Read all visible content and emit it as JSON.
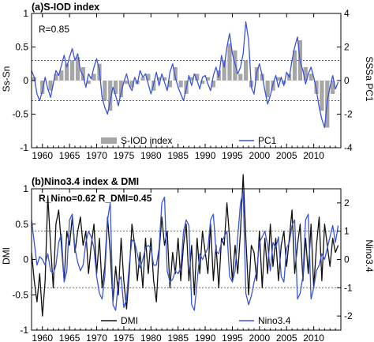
{
  "chart_data": [
    {
      "panel": "a",
      "title": "(a)S-IOD index",
      "type": "bar+line",
      "annotation": "R=0.85",
      "xlim": [
        1958,
        2015
      ],
      "x_ticks": [
        1960,
        1965,
        1970,
        1975,
        1980,
        1985,
        1990,
        1995,
        2000,
        2005,
        2010
      ],
      "x_ticks_on_bottom": true,
      "left_axis": {
        "label": "Ss-Sn",
        "lim": [
          -1,
          1
        ],
        "ticks": [
          -1,
          -0.5,
          0,
          0.5,
          1
        ],
        "tick_labels": [
          "-1",
          "-0.5",
          "0",
          "0.5",
          "1"
        ]
      },
      "right_axis": {
        "label": "SSSa PC1",
        "lim": [
          -4,
          4
        ],
        "ticks": [
          -4,
          -2,
          0,
          2,
          4
        ],
        "tick_labels": [
          "-4",
          "-2",
          "0",
          "2",
          "4"
        ]
      },
      "reference_lines": [
        0.3,
        -0.3
      ],
      "legend": [
        {
          "name": "S-IOD index",
          "style": "gray-bar"
        },
        {
          "name": "PC1",
          "style": "blue-line"
        }
      ],
      "legend_position": "bottom",
      "colors": {
        "bars": "#a6a6a6",
        "line": "#3a55d8",
        "ref": "#555555"
      },
      "series": [
        {
          "name": "S-IOD index",
          "kind": "bar",
          "axis": "left",
          "x": [
            1958.5,
            1960,
            1961.5,
            1962.5,
            1963.5,
            1964.5,
            1965.5,
            1966.5,
            1967.5,
            1968.5,
            1969.5,
            1970.5,
            1971.5,
            1972.5,
            1973.5,
            1974.5,
            1975.5,
            1976.5,
            1977.5,
            1978.5,
            1979.5,
            1980.5,
            1981.5,
            1982.5,
            1983.5,
            1984.5,
            1985.5,
            1986.5,
            1987.5,
            1988.5,
            1989.5,
            1990.5,
            1991.5,
            1992.5,
            1993.5,
            1994.5,
            1995.5,
            1996.5,
            1997.5,
            1998.5,
            1999.5,
            2000.5,
            2001.5,
            2002.5,
            2003.5,
            2004.5,
            2005.5,
            2006.5,
            2007.5,
            2008.5,
            2009.5,
            2010.5,
            2011.5,
            2012.5,
            2013.5
          ],
          "values": [
            0.05,
            -0.2,
            -0.15,
            0.1,
            0.15,
            0.25,
            0.3,
            0.35,
            0.2,
            -0.05,
            0.1,
            0.25,
            -0.3,
            -0.45,
            -0.2,
            -0.25,
            -0.05,
            -0.1,
            -0.05,
            0.05,
            0.1,
            -0.15,
            0.05,
            0.05,
            -0.1,
            0.2,
            -0.1,
            -0.2,
            0.05,
            0.1,
            -0.05,
            0.05,
            -0.1,
            0.15,
            0.3,
            0.55,
            0.45,
            0.1,
            0.3,
            -0.1,
            0.2,
            0.1,
            -0.25,
            -0.15,
            0.05,
            -0.05,
            0.1,
            0.45,
            0.6,
            0.2,
            0.1,
            -0.2,
            -0.45,
            -0.7,
            -0.2
          ]
        },
        {
          "name": "PC1",
          "kind": "line",
          "axis": "right",
          "x": [
            1958,
            1958.5,
            1959,
            1959.5,
            1960,
            1960.5,
            1961,
            1961.5,
            1962,
            1962.5,
            1963,
            1963.5,
            1964,
            1964.5,
            1965,
            1965.5,
            1966,
            1966.5,
            1967,
            1967.5,
            1968,
            1968.5,
            1969,
            1969.5,
            1970,
            1970.5,
            1971,
            1971.5,
            1972,
            1972.5,
            1973,
            1973.5,
            1974,
            1974.5,
            1975,
            1975.5,
            1976,
            1976.5,
            1977,
            1977.5,
            1978,
            1978.5,
            1979,
            1979.5,
            1980,
            1980.5,
            1981,
            1981.5,
            1982,
            1982.5,
            1983,
            1983.5,
            1984,
            1984.5,
            1985,
            1985.5,
            1986,
            1986.5,
            1987,
            1987.5,
            1988,
            1988.5,
            1989,
            1989.5,
            1990,
            1990.5,
            1991,
            1991.5,
            1992,
            1992.5,
            1993,
            1993.5,
            1994,
            1994.5,
            1995,
            1995.5,
            1996,
            1996.5,
            1997,
            1997.5,
            1998,
            1998.5,
            1999,
            1999.5,
            2000,
            2000.5,
            2001,
            2001.5,
            2002,
            2002.5,
            2003,
            2003.5,
            2004,
            2004.5,
            2005,
            2005.5,
            2006,
            2006.5,
            2007,
            2007.5,
            2008,
            2008.5,
            2009,
            2009.5,
            2010,
            2010.5,
            2011,
            2011.5,
            2012,
            2012.5,
            2013,
            2013.5,
            2014,
            2014.5
          ],
          "values": [
            0.6,
            0.2,
            -0.8,
            -1.2,
            -0.6,
            0.2,
            -0.5,
            -1.0,
            -0.2,
            0.6,
            0.3,
            0.9,
            1.5,
            0.8,
            1.4,
            1.9,
            1.2,
            1.6,
            0.6,
            0.3,
            -0.4,
            0.4,
            0.1,
            0.8,
            1.3,
            0.6,
            -1.0,
            -1.6,
            -2.0,
            -1.2,
            -0.4,
            -0.9,
            -1.5,
            -0.7,
            -0.1,
            0.4,
            -0.3,
            -0.6,
            0.2,
            -0.2,
            0.6,
            0.2,
            0.4,
            -0.2,
            -0.8,
            -0.2,
            0.5,
            -0.3,
            0.4,
            -0.1,
            -0.6,
            0.5,
            1.0,
            0.2,
            -0.4,
            -0.8,
            -1.2,
            -0.5,
            0.3,
            -0.3,
            0.4,
            0.0,
            -0.5,
            0.2,
            0.3,
            -0.2,
            -0.6,
            0.3,
            0.8,
            0.2,
            1.5,
            0.8,
            2.0,
            2.8,
            1.6,
            1.0,
            0.4,
            0.8,
            1.6,
            3.5,
            2.4,
            -0.4,
            -0.8,
            0.5,
            1.0,
            0.3,
            -0.6,
            -1.4,
            -0.9,
            -0.2,
            0.3,
            -0.4,
            0.2,
            -0.3,
            0.5,
            0.2,
            1.2,
            2.0,
            2.6,
            1.1,
            0.6,
            -0.2,
            0.4,
            0.8,
            0.2,
            -0.6,
            -1.6,
            -2.3,
            -2.8,
            -1.2,
            -0.4,
            0.3,
            -0.5,
            -0.1
          ]
        }
      ]
    },
    {
      "panel": "b",
      "title": "(b)Nino3.4 index & DMI",
      "type": "line",
      "annotation": "R_Nino=0.62  R_DMI=0.45",
      "xlim": [
        1958,
        2015
      ],
      "x_ticks": [
        1960,
        1965,
        1970,
        1975,
        1980,
        1985,
        1990,
        1995,
        2000,
        2005,
        2010
      ],
      "left_axis": {
        "label": "DMI",
        "lim": [
          -1,
          1
        ],
        "ticks": [
          -1,
          -0.5,
          0,
          0.5,
          1
        ],
        "tick_labels": [
          "-1",
          "-0.5",
          "0",
          "0.5",
          "1"
        ]
      },
      "right_axis": {
        "label": "Nino3.4",
        "lim": [
          -2.5,
          2.5
        ],
        "ticks": [
          -2,
          -1,
          0,
          1,
          2
        ],
        "tick_labels": [
          "-2",
          "-1",
          "0",
          "1",
          "2"
        ]
      },
      "reference_lines": [
        0.4,
        -0.4
      ],
      "legend": [
        {
          "name": "DMI",
          "style": "black-line"
        },
        {
          "name": "Nino3.4",
          "style": "blue-line"
        }
      ],
      "legend_position": "bottom",
      "colors": {
        "dmi": "#111111",
        "nino": "#3a55d8",
        "ref": "#555555"
      },
      "series": [
        {
          "name": "DMI",
          "kind": "line",
          "axis": "left",
          "x": [
            1958,
            1958.5,
            1959,
            1959.5,
            1960,
            1960.5,
            1961,
            1961.5,
            1962,
            1962.5,
            1963,
            1963.5,
            1964,
            1964.5,
            1965,
            1965.5,
            1966,
            1966.5,
            1967,
            1967.5,
            1968,
            1968.5,
            1969,
            1969.5,
            1970,
            1970.5,
            1971,
            1971.5,
            1972,
            1972.5,
            1973,
            1973.5,
            1974,
            1974.5,
            1975,
            1975.5,
            1976,
            1976.5,
            1977,
            1977.5,
            1978,
            1978.5,
            1979,
            1979.5,
            1980,
            1980.5,
            1981,
            1981.5,
            1982,
            1982.5,
            1983,
            1983.5,
            1984,
            1984.5,
            1985,
            1985.5,
            1986,
            1986.5,
            1987,
            1987.5,
            1988,
            1988.5,
            1989,
            1989.5,
            1990,
            1990.5,
            1991,
            1991.5,
            1992,
            1992.5,
            1993,
            1993.5,
            1994,
            1994.5,
            1995,
            1995.5,
            1996,
            1996.5,
            1997,
            1997.5,
            1998,
            1998.5,
            1999,
            1999.5,
            2000,
            2000.5,
            2001,
            2001.5,
            2002,
            2002.5,
            2003,
            2003.5,
            2004,
            2004.5,
            2005,
            2005.5,
            2006,
            2006.5,
            2007,
            2007.5,
            2008,
            2008.5,
            2009,
            2009.5,
            2010,
            2010.5,
            2011,
            2011.5,
            2012,
            2012.5,
            2013,
            2013.5,
            2014,
            2014.5
          ],
          "values": [
            0.1,
            -0.3,
            -0.6,
            -0.2,
            -0.8,
            -0.3,
            0.9,
            0.2,
            -0.4,
            0.5,
            0.7,
            0.2,
            -0.3,
            0.4,
            0.2,
            0.6,
            0.1,
            0.4,
            0.6,
            0.2,
            0.4,
            -0.2,
            0.2,
            0.5,
            -0.2,
            0.3,
            -0.4,
            -0.1,
            0.6,
            0.1,
            -0.6,
            -0.1,
            -0.5,
            0.3,
            -0.3,
            -0.7,
            -0.2,
            0.5,
            0.2,
            -0.3,
            0.1,
            -0.4,
            0.3,
            -0.2,
            0.3,
            -0.3,
            -0.6,
            0.1,
            0.6,
            0.2,
            0.4,
            -0.4,
            0.1,
            -0.2,
            0.3,
            -0.3,
            0.2,
            0.5,
            -0.3,
            0.2,
            -0.5,
            0.3,
            -0.2,
            0.4,
            0.1,
            -0.2,
            0.5,
            -0.3,
            0.2,
            -0.4,
            0.3,
            0.2,
            0.8,
            0.3,
            -0.3,
            0.2,
            -0.2,
            0.4,
            1.2,
            0.3,
            -0.5,
            0.2,
            0.1,
            -0.3,
            0.4,
            -0.4,
            0.3,
            -0.2,
            0.5,
            -0.1,
            0.3,
            -0.3,
            0.2,
            0.4,
            -0.1,
            0.3,
            0.7,
            -0.2,
            0.2,
            0.5,
            -0.3,
            0.3,
            -0.2,
            0.5,
            -0.4,
            0.2,
            0.6,
            -0.3,
            0.5,
            0.2,
            -0.1,
            0.3,
            0.1,
            0.2
          ]
        },
        {
          "name": "Nino3.4",
          "kind": "line",
          "axis": "right",
          "x": [
            1958,
            1958.5,
            1959,
            1959.5,
            1960,
            1960.5,
            1961,
            1961.5,
            1962,
            1962.5,
            1963,
            1963.5,
            1964,
            1964.5,
            1965,
            1965.5,
            1966,
            1966.5,
            1967,
            1967.5,
            1968,
            1968.5,
            1969,
            1969.5,
            1970,
            1970.5,
            1971,
            1971.5,
            1972,
            1972.5,
            1973,
            1973.5,
            1974,
            1974.5,
            1975,
            1975.5,
            1976,
            1976.5,
            1977,
            1977.5,
            1978,
            1978.5,
            1979,
            1979.5,
            1980,
            1980.5,
            1981,
            1981.5,
            1982,
            1982.5,
            1983,
            1983.5,
            1984,
            1984.5,
            1985,
            1985.5,
            1986,
            1986.5,
            1987,
            1987.5,
            1988,
            1988.5,
            1989,
            1989.5,
            1990,
            1990.5,
            1991,
            1991.5,
            1992,
            1992.5,
            1993,
            1993.5,
            1994,
            1994.5,
            1995,
            1995.5,
            1996,
            1996.5,
            1997,
            1997.5,
            1998,
            1998.5,
            1999,
            1999.5,
            2000,
            2000.5,
            2001,
            2001.5,
            2002,
            2002.5,
            2003,
            2003.5,
            2004,
            2004.5,
            2005,
            2005.5,
            2006,
            2006.5,
            2007,
            2007.5,
            2008,
            2008.5,
            2009,
            2009.5,
            2010,
            2010.5,
            2011,
            2011.5,
            2012,
            2012.5,
            2013,
            2013.5,
            2014,
            2014.5
          ],
          "values": [
            1.4,
            0.6,
            -0.2,
            0.1,
            0.0,
            -0.2,
            0.2,
            -0.4,
            -0.5,
            -0.2,
            0.6,
            0.9,
            -0.8,
            -0.4,
            1.4,
            1.6,
            0.4,
            -0.1,
            -0.4,
            -0.2,
            0.6,
            1.0,
            0.8,
            0.4,
            -0.6,
            -1.2,
            -1.4,
            -0.6,
            1.4,
            2.0,
            -1.6,
            -1.8,
            -0.8,
            -0.6,
            -1.7,
            -1.4,
            -0.2,
            0.7,
            0.6,
            0.2,
            -0.3,
            0.0,
            0.4,
            0.5,
            0.4,
            -0.2,
            -0.2,
            0.4,
            2.0,
            2.2,
            -0.4,
            -0.8,
            -0.7,
            -0.4,
            -0.5,
            -0.3,
            1.0,
            1.4,
            1.2,
            -1.6,
            -1.8,
            -0.8,
            0.2,
            0.0,
            0.2,
            0.4,
            1.4,
            1.6,
            0.3,
            0.2,
            0.6,
            0.8,
            1.0,
            -0.6,
            -0.8,
            -0.4,
            0.8,
            2.0,
            2.4,
            -1.2,
            -1.6,
            -1.3,
            -0.8,
            -0.4,
            0.6,
            0.8,
            1.0,
            0.5,
            -0.4,
            0.6,
            0.4,
            0.8,
            -0.6,
            -0.8,
            0.4,
            0.6,
            1.2,
            1.4,
            -1.4,
            -1.2,
            -0.6,
            1.4,
            1.6,
            -1.4,
            -1.0,
            -0.4,
            -0.2,
            0.2,
            0.0,
            0.4,
            0.8,
            1.2,
            0.6,
            1.2
          ]
        }
      ]
    }
  ]
}
